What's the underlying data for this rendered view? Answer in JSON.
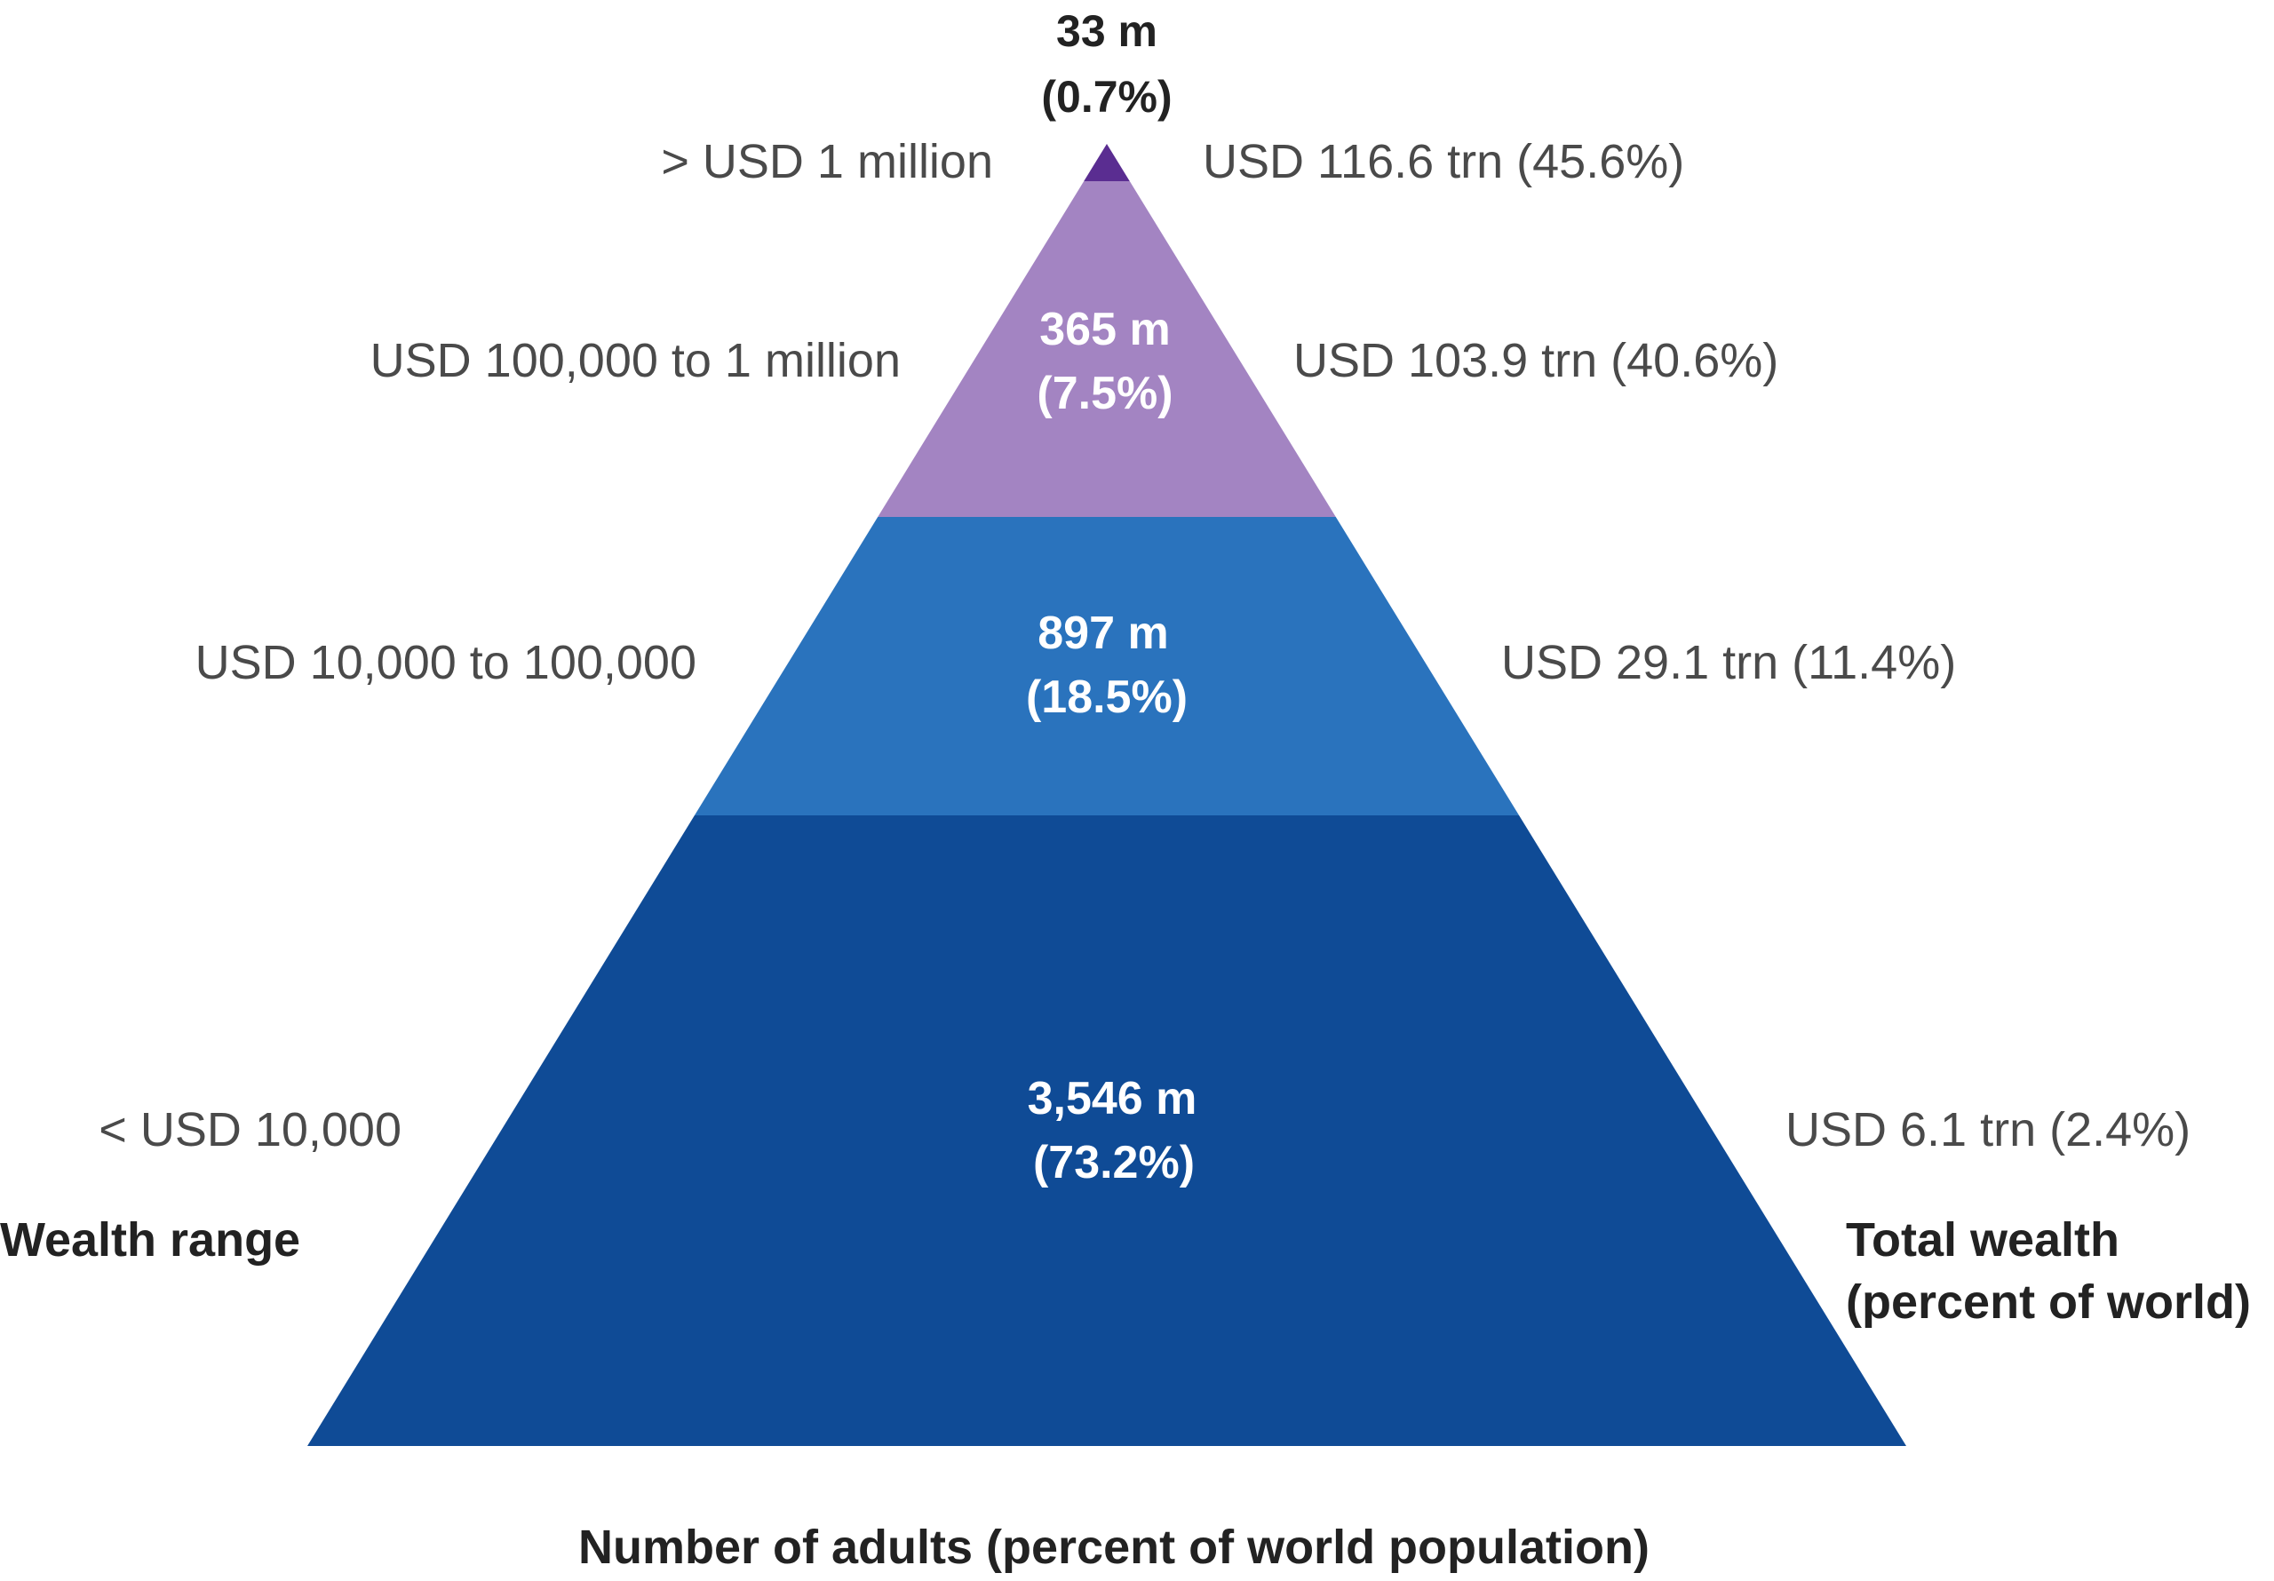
{
  "chart_data": {
    "type": "pyramid",
    "tiers": [
      {
        "wealth_range": "> USD 1 million",
        "adults": "33 m",
        "adults_pct": "(0.7%)",
        "total_wealth": "USD 116.6 trn (45.6%)",
        "color": "#5a2d91"
      },
      {
        "wealth_range": "USD 100,000  to 1 million",
        "adults": "365 m",
        "adults_pct": "(7.5%)",
        "total_wealth": "USD 103.9 trn (40.6%)",
        "color": "#a384c2"
      },
      {
        "wealth_range": "USD 10,000  to 100,000",
        "adults": "897 m",
        "adults_pct": "(18.5%)",
        "total_wealth": "USD 29.1 trn (11.4%)",
        "color": "#2a73bd"
      },
      {
        "wealth_range": "<  USD 10,000",
        "adults": "3,546 m",
        "adults_pct": "(73.2%)",
        "total_wealth": "USD 6.1 trn (2.4%)",
        "color": "#0f4b96"
      }
    ],
    "left_title": "Wealth range",
    "right_title_line1": "Total wealth",
    "right_title_line2": "(percent of world)",
    "xlabel": "Number of adults (percent of world population)"
  }
}
